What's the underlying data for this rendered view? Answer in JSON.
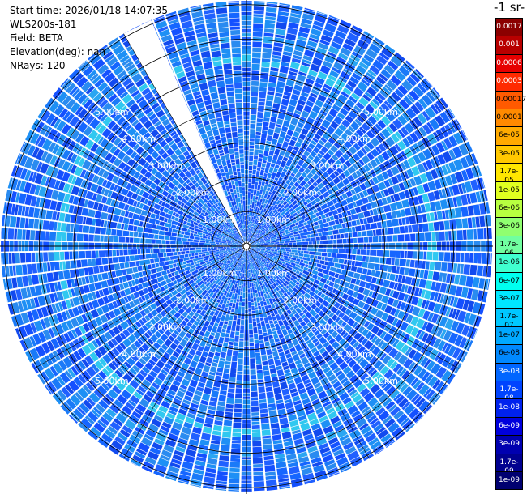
{
  "header": {
    "start_time": "Start time: 2026/01/18 14:07:35",
    "instrument": "WLS200s-181",
    "field": "Field: BETA",
    "elevation": "Elevation(deg): nan",
    "nrays": "NRays: 120"
  },
  "colorbar": {
    "units_fragment": "-1 sr-",
    "labels": [
      "0.0017",
      "0.001",
      "0.0006",
      "0.0003",
      "0.00017",
      "0.0001",
      "6e-05",
      "3e-05",
      "1.7e-05",
      "1e-05",
      "6e-06",
      "3e-06",
      "1.7e-06",
      "1e-06",
      "6e-07",
      "3e-07",
      "1.7e-07",
      "1e-07",
      "6e-08",
      "3e-08",
      "1.7e-08",
      "1e-08",
      "6e-09",
      "3e-09",
      "1.7e-09",
      "1e-09"
    ],
    "colors": [
      "#8b0000",
      "#b80000",
      "#e60000",
      "#ff2a00",
      "#ff5a00",
      "#ff8a00",
      "#ffaa00",
      "#ffc800",
      "#ffe600",
      "#e0ff20",
      "#b8ff40",
      "#90ff70",
      "#70ffa0",
      "#40ffd0",
      "#00fff0",
      "#00e8ff",
      "#00c8ff",
      "#00a8ff",
      "#0088ff",
      "#0066ff",
      "#0044ff",
      "#0022ee",
      "#0000dd",
      "#0000b0",
      "#000090",
      "#000070"
    ]
  },
  "range_rings": {
    "labels": [
      "1.00km",
      "2.00km",
      "3.00km",
      "4.00km",
      "5.00km"
    ]
  },
  "ppi": {
    "rays": 120,
    "gap_azimuth_deg": -26,
    "ring_colors": [
      "#1666ff",
      "#1a9cf5",
      "#30c8f0",
      "#2a8bf0"
    ]
  }
}
